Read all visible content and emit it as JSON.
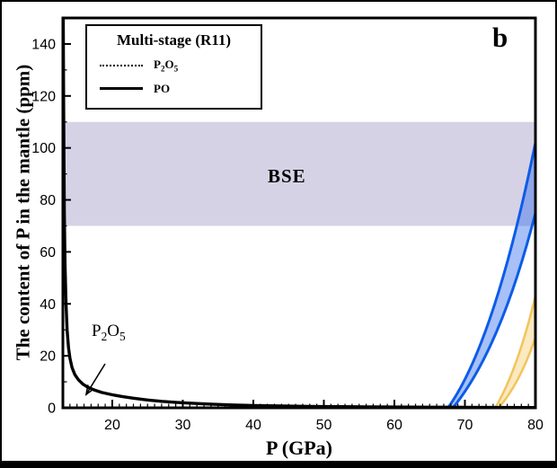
{
  "figure": {
    "panel_label": "b",
    "bse_label": "BSE",
    "xlabel": "P (GPa)",
    "ylabel": "The content of P in the mantle (ppm)"
  },
  "legend": {
    "title": "Multi-stage (R11)",
    "items": [
      {
        "name": "P2O5",
        "line_style": "dotted",
        "label_parts": [
          "P",
          "2",
          "O",
          "5"
        ]
      },
      {
        "name": "PO",
        "line_style": "solid",
        "label": "PO"
      }
    ]
  },
  "annotation": {
    "label_parts": [
      "P",
      "2",
      "O",
      "5"
    ]
  },
  "colors": {
    "bse_band": "#d6d2e6",
    "blue_stroke": "#0b5ce8",
    "blue_fill": "rgba(45,105,235,0.42)",
    "yellow_stroke": "#f2c45c",
    "yellow_fill": "rgba(242,196,92,0.38)",
    "curve": "#000000"
  },
  "chart_data": {
    "type": "line",
    "title": "",
    "xlabel": "P (GPa)",
    "ylabel": "The content of P in the mantle (ppm)",
    "xlim": [
      13,
      80
    ],
    "ylim": [
      0,
      150
    ],
    "grid": false,
    "legend_position": "upper-left",
    "x_major_ticks": [
      20,
      30,
      40,
      50,
      60,
      70,
      80
    ],
    "x_minor_step": 1,
    "y_major_ticks": [
      0,
      20,
      40,
      60,
      80,
      100,
      120,
      140
    ],
    "y_minor_step": 10,
    "bse_band": {
      "label": "BSE",
      "ymin": 70,
      "ymax": 110
    },
    "series": [
      {
        "name": "P2O5-low-pressure-curve",
        "type": "line",
        "color": "#000000",
        "points": [
          [
            13.05,
            150
          ],
          [
            13.1,
            120
          ],
          [
            13.15,
            95
          ],
          [
            13.2,
            75
          ],
          [
            13.3,
            55
          ],
          [
            13.45,
            40
          ],
          [
            13.6,
            30
          ],
          [
            13.8,
            23
          ],
          [
            14.0,
            19
          ],
          [
            14.3,
            15.5
          ],
          [
            14.7,
            12.8
          ],
          [
            15.2,
            10.8
          ],
          [
            15.8,
            9.2
          ],
          [
            16.5,
            8.0
          ],
          [
            17.5,
            6.8
          ],
          [
            18.5,
            5.9
          ],
          [
            20,
            5.0
          ],
          [
            21.5,
            4.3
          ],
          [
            23,
            3.7
          ],
          [
            25,
            3.0
          ],
          [
            27,
            2.5
          ],
          [
            29,
            2.1
          ],
          [
            31,
            1.8
          ],
          [
            34,
            1.4
          ],
          [
            37,
            1.1
          ],
          [
            40,
            0.9
          ],
          [
            44,
            0.7
          ],
          [
            48,
            0.55
          ],
          [
            52,
            0.45
          ],
          [
            56,
            0.38
          ],
          [
            60,
            0.3
          ],
          [
            65,
            0.25
          ],
          [
            70,
            0.2
          ],
          [
            75,
            0.15
          ],
          [
            80,
            0.12
          ]
        ]
      }
    ],
    "wedges": [
      {
        "name": "blue-wedge",
        "apex_x": [
          67.6,
          68.3
        ],
        "apex_y": 0,
        "x_end": 80,
        "y_upper": 102,
        "y_lower": 75,
        "ctrl_upper": [
          74.2,
          25
        ],
        "ctrl_lower": [
          75.05,
          22.5
        ],
        "stroke": "#0b5ce8",
        "fill": "rgba(45,105,235,0.42)",
        "stroke_width": 3
      },
      {
        "name": "yellow-wedge",
        "apex_x": [
          74.3,
          74.8
        ],
        "apex_y": 0,
        "x_end": 80,
        "y_upper": 43,
        "y_lower": 27,
        "ctrl_upper": [
          77.45,
          14.5
        ],
        "ctrl_lower": [
          77.8,
          9.5
        ],
        "stroke": "#f2c45c",
        "fill": "rgba(242,196,92,0.38)",
        "stroke_width": 2.5
      }
    ]
  }
}
